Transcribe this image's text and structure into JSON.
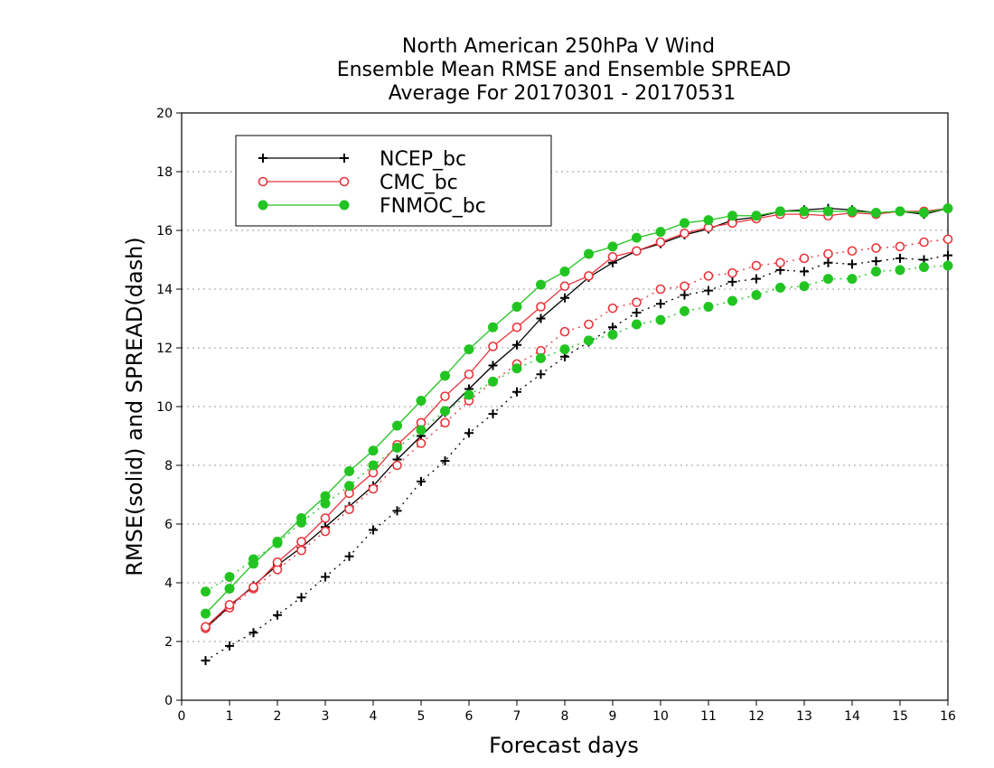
{
  "chart_data": {
    "type": "line",
    "title": [
      "North American 250hPa V Wind",
      "Ensemble Mean RMSE and Ensemble SPREAD",
      "Average For 20170301 - 20170531"
    ],
    "xlabel": "Forecast days",
    "ylabel": "RMSE(solid) and SPREAD(dash)",
    "xlim": [
      0,
      16
    ],
    "ylim": [
      0,
      20
    ],
    "xticks": [
      0,
      1,
      2,
      3,
      4,
      5,
      6,
      7,
      8,
      9,
      10,
      11,
      12,
      13,
      14,
      15,
      16
    ],
    "yticks": [
      0,
      2,
      4,
      6,
      8,
      10,
      12,
      14,
      16,
      18,
      20
    ],
    "grid": true,
    "legend_position": "top-left",
    "x": [
      0.5,
      1,
      1.5,
      2,
      2.5,
      3,
      3.5,
      4,
      4.5,
      5,
      5.5,
      6,
      6.5,
      7,
      7.5,
      8,
      8.5,
      9,
      9.5,
      10,
      10.5,
      11,
      11.5,
      12,
      12.5,
      13,
      13.5,
      14,
      14.5,
      15,
      15.5,
      16
    ],
    "series": [
      {
        "name": "NCEP_bc",
        "color": "#000000",
        "marker": "plus",
        "rmse": [
          2.45,
          3.2,
          3.9,
          4.6,
          5.2,
          5.9,
          6.6,
          7.3,
          8.2,
          9.0,
          9.8,
          10.6,
          11.4,
          12.1,
          13.0,
          13.7,
          14.4,
          14.9,
          15.3,
          15.55,
          15.85,
          16.05,
          16.35,
          16.45,
          16.65,
          16.7,
          16.75,
          16.7,
          16.6,
          16.65,
          16.55,
          16.75
        ],
        "spread": [
          1.35,
          1.85,
          2.3,
          2.9,
          3.5,
          4.2,
          4.9,
          5.8,
          6.45,
          7.45,
          8.15,
          9.1,
          9.75,
          10.5,
          11.1,
          11.7,
          12.2,
          12.7,
          13.2,
          13.5,
          13.8,
          13.95,
          14.25,
          14.35,
          14.65,
          14.6,
          14.9,
          14.85,
          14.95,
          15.05,
          15.0,
          15.15
        ]
      },
      {
        "name": "CMC_bc",
        "color": "#e8343c",
        "marker": "open-circle",
        "rmse": [
          2.5,
          3.25,
          3.85,
          4.7,
          5.4,
          6.2,
          7.05,
          7.75,
          8.7,
          9.45,
          10.35,
          11.1,
          12.05,
          12.7,
          13.4,
          14.1,
          14.45,
          15.1,
          15.3,
          15.6,
          15.9,
          16.1,
          16.25,
          16.4,
          16.55,
          16.55,
          16.5,
          16.6,
          16.55,
          16.65,
          16.65,
          16.75
        ],
        "spread": [
          2.45,
          3.15,
          3.8,
          4.45,
          5.1,
          5.75,
          6.5,
          7.2,
          8.0,
          8.75,
          9.45,
          10.2,
          10.85,
          11.45,
          11.9,
          12.55,
          12.8,
          13.35,
          13.55,
          14.0,
          14.1,
          14.45,
          14.55,
          14.8,
          14.9,
          15.05,
          15.2,
          15.3,
          15.4,
          15.45,
          15.6,
          15.7
        ]
      },
      {
        "name": "FNMOC_bc",
        "color": "#22c422",
        "marker": "filled-circle",
        "rmse": [
          2.95,
          3.8,
          4.65,
          5.4,
          6.2,
          6.95,
          7.8,
          8.5,
          9.35,
          10.2,
          11.05,
          11.95,
          12.7,
          13.4,
          14.15,
          14.6,
          15.2,
          15.45,
          15.75,
          15.95,
          16.25,
          16.35,
          16.5,
          16.5,
          16.65,
          16.65,
          16.65,
          16.65,
          16.6,
          16.65,
          16.6,
          16.75
        ],
        "spread": [
          3.7,
          4.2,
          4.8,
          5.35,
          6.05,
          6.7,
          7.3,
          8.0,
          8.6,
          9.2,
          9.85,
          10.4,
          10.85,
          11.3,
          11.65,
          11.95,
          12.25,
          12.45,
          12.8,
          12.95,
          13.25,
          13.4,
          13.6,
          13.8,
          14.05,
          14.1,
          14.35,
          14.35,
          14.6,
          14.65,
          14.75,
          14.8
        ]
      }
    ]
  }
}
